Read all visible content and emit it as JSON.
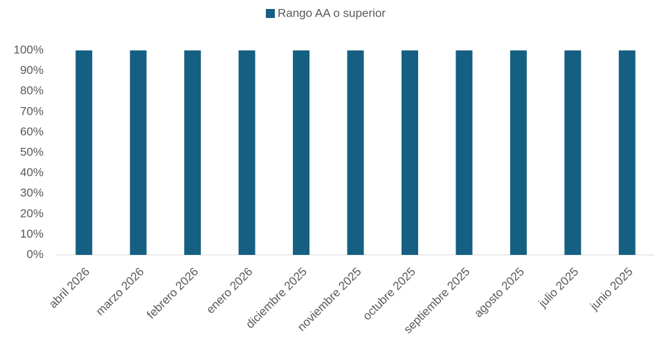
{
  "chart_data": {
    "type": "bar",
    "categories": [
      "abril 2026",
      "marzo 2026",
      "febrero 2026",
      "enero 2026",
      "diciembre 2025",
      "noviembre 2025",
      "octubre 2025",
      "septiembre 2025",
      "agosto 2025",
      "julio 2025",
      "junio 2025"
    ],
    "series": [
      {
        "name": "Rango AA o superior",
        "color": "#156082",
        "values": [
          100,
          100,
          100,
          100,
          100,
          100,
          100,
          100,
          100,
          100,
          100
        ]
      }
    ],
    "ylim": [
      0,
      100
    ],
    "yticks": [
      {
        "value": 0,
        "label": "0%"
      },
      {
        "value": 10,
        "label": "10%"
      },
      {
        "value": 20,
        "label": "20%"
      },
      {
        "value": 30,
        "label": "30%"
      },
      {
        "value": 40,
        "label": "40%"
      },
      {
        "value": 50,
        "label": "50%"
      },
      {
        "value": 60,
        "label": "60%"
      },
      {
        "value": 70,
        "label": "70%"
      },
      {
        "value": 80,
        "label": "80%"
      },
      {
        "value": 90,
        "label": "90%"
      },
      {
        "value": 100,
        "label": "100%"
      }
    ],
    "grid": false,
    "legend": "top"
  }
}
